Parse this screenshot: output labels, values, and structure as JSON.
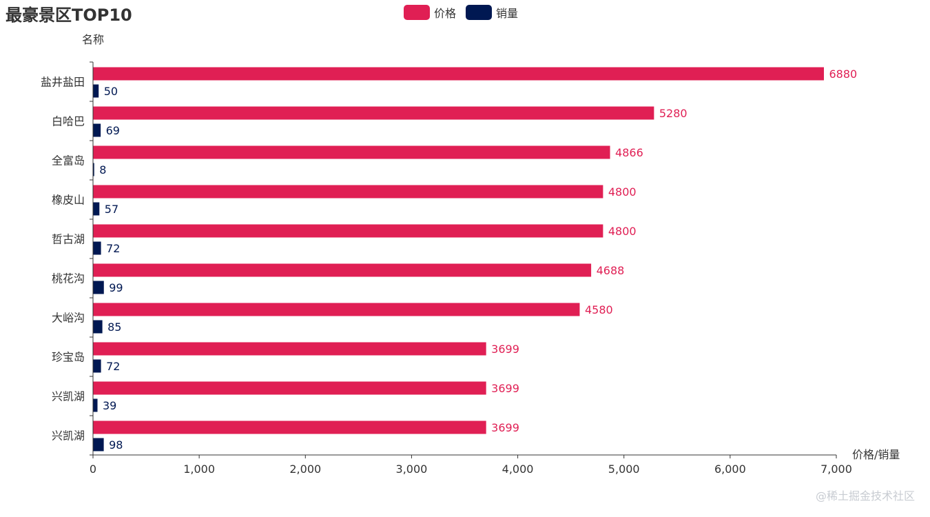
{
  "watermark": "@稀土掘金技术社区",
  "colors": {
    "price": "#e01f54",
    "sales": "#001852",
    "axis": "#333333",
    "text": "#333333"
  },
  "chart_data": {
    "type": "bar",
    "orientation": "horizontal",
    "title": "最豪景区TOP10",
    "xlabel": "价格/销量",
    "ylabel": "名称",
    "xlim": [
      0,
      7000
    ],
    "xticks": [
      "0",
      "1,000",
      "2,000",
      "3,000",
      "4,000",
      "5,000",
      "6,000",
      "7,000"
    ],
    "xtick_values": [
      0,
      1000,
      2000,
      3000,
      4000,
      5000,
      6000,
      7000
    ],
    "grid": false,
    "legend_position": "top-center",
    "categories": [
      "盐井盐田",
      "白哈巴",
      "全富岛",
      "橡皮山",
      "哲古湖",
      "桃花沟",
      "大峪沟",
      "珍宝岛",
      "兴凯湖",
      "兴凯湖"
    ],
    "series": [
      {
        "name": "价格",
        "color": "#e01f54",
        "values": [
          6880,
          5280,
          4866,
          4800,
          4800,
          4688,
          4580,
          3699,
          3699,
          3699
        ]
      },
      {
        "name": "销量",
        "color": "#001852",
        "values": [
          50,
          69,
          8,
          57,
          72,
          99,
          85,
          72,
          39,
          98
        ]
      }
    ]
  }
}
